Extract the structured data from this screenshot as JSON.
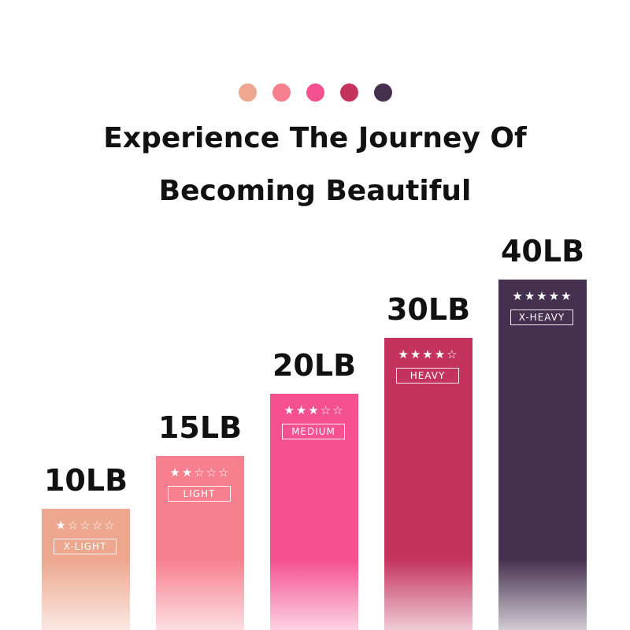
{
  "title_line1": "Experience The Journey Of",
  "title_line2": "Becoming Beautiful",
  "colors": [
    "#eda78e",
    "#f77f8e",
    "#f5508f",
    "#c4335e",
    "#46304f"
  ],
  "chart_data": {
    "type": "bar",
    "categories": [
      "10LB",
      "15LB",
      "20LB",
      "30LB",
      "40LB"
    ],
    "values": [
      10,
      15,
      20,
      30,
      40
    ],
    "levels": [
      "X-LIGHT",
      "LIGHT",
      "MEDIUM",
      "HEAVY",
      "X-HEAVY"
    ],
    "stars": [
      1,
      2,
      3,
      4,
      5
    ],
    "max_stars": 5,
    "title": "",
    "xlabel": "",
    "ylabel": ""
  }
}
